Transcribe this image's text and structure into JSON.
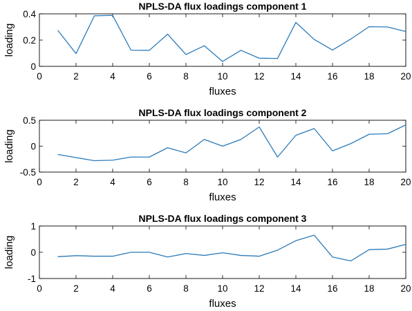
{
  "chart_data": [
    {
      "type": "line",
      "title": "NPLS-DA flux loadings component 1",
      "xlabel": "fluxes",
      "ylabel": "loading",
      "xlim": [
        0,
        20
      ],
      "ylim": [
        0,
        0.4
      ],
      "xticks": [
        0,
        2,
        4,
        6,
        8,
        10,
        12,
        14,
        16,
        18,
        20
      ],
      "yticks": [
        0,
        0.2,
        0.4
      ],
      "ytick_labels": [
        "0",
        "0.2",
        "0.4"
      ],
      "grid": false,
      "x": [
        1,
        2,
        3,
        4,
        5,
        6,
        7,
        8,
        9,
        10,
        11,
        12,
        13,
        14,
        15,
        16,
        17,
        18,
        19,
        20
      ],
      "series": [
        {
          "color": "#2a7ab9",
          "values": [
            0.275,
            0.097,
            0.385,
            0.388,
            0.123,
            0.122,
            0.245,
            0.09,
            0.157,
            0.037,
            0.122,
            0.062,
            0.06,
            0.335,
            0.205,
            0.124,
            0.208,
            0.302,
            0.3,
            0.265
          ]
        }
      ]
    },
    {
      "type": "line",
      "title": "NPLS-DA flux loadings component 2",
      "xlabel": "fluxes",
      "ylabel": "loading",
      "xlim": [
        0,
        20
      ],
      "ylim": [
        -0.5,
        0.5
      ],
      "xticks": [
        0,
        2,
        4,
        6,
        8,
        10,
        12,
        14,
        16,
        18,
        20
      ],
      "yticks": [
        -0.5,
        0,
        0.5
      ],
      "ytick_labels": [
        "-0.5",
        "0",
        "0.5"
      ],
      "grid": false,
      "x": [
        1,
        2,
        3,
        4,
        5,
        6,
        7,
        8,
        9,
        10,
        11,
        12,
        13,
        14,
        15,
        16,
        17,
        18,
        19,
        20
      ],
      "series": [
        {
          "color": "#2a7ab9",
          "values": [
            -0.16,
            -0.22,
            -0.28,
            -0.27,
            -0.21,
            -0.21,
            -0.03,
            -0.13,
            0.13,
            0.0,
            0.13,
            0.37,
            -0.21,
            0.21,
            0.34,
            -0.09,
            0.05,
            0.23,
            0.24,
            0.41
          ]
        }
      ]
    },
    {
      "type": "line",
      "title": "NPLS-DA flux loadings component 3",
      "xlabel": "fluxes",
      "ylabel": "loading",
      "xlim": [
        0,
        20
      ],
      "ylim": [
        -1,
        1
      ],
      "xticks": [
        0,
        2,
        4,
        6,
        8,
        10,
        12,
        14,
        16,
        18,
        20
      ],
      "yticks": [
        -1,
        0,
        1
      ],
      "ytick_labels": [
        "-1",
        "0",
        "1"
      ],
      "grid": false,
      "x": [
        1,
        2,
        3,
        4,
        5,
        6,
        7,
        8,
        9,
        10,
        11,
        12,
        13,
        14,
        15,
        16,
        17,
        18,
        19,
        20
      ],
      "series": [
        {
          "color": "#2a7ab9",
          "values": [
            -0.17,
            -0.13,
            -0.15,
            -0.15,
            0.0,
            0.0,
            -0.18,
            -0.05,
            -0.12,
            -0.02,
            -0.12,
            -0.15,
            0.08,
            0.44,
            0.65,
            -0.18,
            -0.33,
            0.1,
            0.12,
            0.3
          ]
        }
      ]
    }
  ]
}
